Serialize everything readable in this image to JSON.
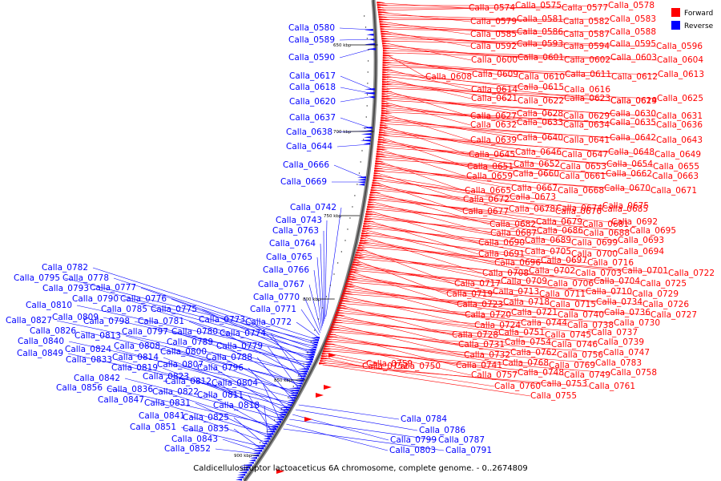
{
  "legend": {
    "forward": {
      "label": "Forward",
      "color": "#ff0000"
    },
    "reverse": {
      "label": "Reverse",
      "color": "#0000ff"
    }
  },
  "caption": "Caldicellulosiruptor lactoaceticus 6A chromosome, complete genome. - 0..2674809",
  "ticks": [
    "650 kbp",
    "700 kbp",
    "750 kbp",
    "800 kbp",
    "850 kbp",
    "900 kbp"
  ],
  "forward_genes": [
    "Calla_0574",
    "Calla_0575",
    "Calla_0577",
    "Calla_0578",
    "Calla_0579",
    "Calla_0581",
    "Calla_0582",
    "Calla_0583",
    "Calla_0585",
    "Calla_0586",
    "Calla_0587",
    "Calla_0588",
    "Calla_0592",
    "Calla_0593",
    "Calla_0594",
    "Calla_0595",
    "Calla_0596",
    "Calla_0600",
    "Calla_0601",
    "Calla_0602",
    "Calla_0603",
    "Calla_0604",
    "Calla_0608",
    "Calla_0609",
    "Calla_0610",
    "Calla_0611",
    "Calla_0612",
    "Calla_0613",
    "Calla_0614",
    "Calla_0615",
    "Calla_0616",
    "Calla_0619",
    "Calla_0621",
    "Calla_0622",
    "Calla_0623",
    "Calla_0624",
    "Calla_0625",
    "Calla_0627",
    "Calla_0628",
    "Calla_0629",
    "Calla_0630",
    "Calla_0631",
    "Calla_0632",
    "Calla_0633",
    "Calla_0634",
    "Calla_0635",
    "Calla_0636",
    "Calla_0639",
    "Calla_0640",
    "Calla_0641",
    "Calla_0642",
    "Calla_0643",
    "Calla_0645",
    "Calla_0646",
    "Calla_0647",
    "Calla_0648",
    "Calla_0649",
    "Calla_0651",
    "Calla_0652",
    "Calla_0653",
    "Calla_0654",
    "Calla_0655",
    "Calla_0659",
    "Calla_0660",
    "Calla_0661",
    "Calla_0662",
    "Calla_0663",
    "Calla_0665",
    "Calla_0667",
    "Calla_0668",
    "Calla_0670",
    "Calla_0671",
    "Calla_0672",
    "Calla_0673",
    "Calla_0674",
    "Calla_0675",
    "Calla_0677",
    "Calla_0678",
    "Calla_0676",
    "Calla_0685",
    "Calla_0682",
    "Calla_0679",
    "Calla_0681",
    "Calla_0692",
    "Calla_0687",
    "Calla_0686",
    "Calla_0688",
    "Calla_0695",
    "Calla_0690",
    "Calla_0689",
    "Calla_0699",
    "Calla_0693",
    "Calla_0691",
    "Calla_0705",
    "Calla_0700",
    "Calla_0694",
    "Calla_0696",
    "Calla_0697",
    "Calla_0716",
    "Calla_0708",
    "Calla_0702",
    "Calla_0703",
    "Calla_0701",
    "Calla_0722",
    "Calla_0717",
    "Calla_0709",
    "Calla_0706",
    "Calla_0704",
    "Calla_0725",
    "Calla_0719",
    "Calla_0713",
    "Calla_0711",
    "Calla_0710",
    "Calla_0729",
    "Calla_0723",
    "Calla_0718",
    "Calla_0715",
    "Calla_0734",
    "Calla_0726",
    "Calla_0720",
    "Calla_0721",
    "Calla_0740",
    "Calla_0736",
    "Calla_0727",
    "Calla_0724",
    "Calla_0744",
    "Calla_0738",
    "Calla_0730",
    "Calla_0728",
    "Calla_0751",
    "Calla_0745",
    "Calla_0737",
    "Calla_0731",
    "Calla_0754",
    "Calla_0746",
    "Calla_0739",
    "Calla_0732",
    "Calla_0762",
    "Calla_0756",
    "Calla_0747",
    "Calla_0741",
    "Calla_0768",
    "Calla_0769",
    "Calla_0783",
    "Calla_0757",
    "Calla_0748",
    "Calla_0749",
    "Calla_0758",
    "Calla_0750",
    "Calla_0759",
    "Calla_0752",
    "Calla_0760",
    "Calla_0753",
    "Calla_0761",
    "Calla_0755"
  ],
  "reverse_genes": [
    "Calla_0580",
    "Calla_0589",
    "Calla_0590",
    "Calla_0617",
    "Calla_0618",
    "Calla_0620",
    "Calla_0637",
    "Calla_0638",
    "Calla_0644",
    "Calla_0666",
    "Calla_0669",
    "Calla_0742",
    "Calla_0743",
    "Calla_0763",
    "Calla_0764",
    "Calla_0765",
    "Calla_0766",
    "Calla_0767",
    "Calla_0770",
    "Calla_0771",
    "Calla_0772",
    "Calla_0782",
    "Calla_0795",
    "Calla_0778",
    "Calla_0793",
    "Calla_0777",
    "Calla_0790",
    "Calla_0776",
    "Calla_0810",
    "Calla_0785",
    "Calla_0775",
    "Calla_0809",
    "Calla_0798",
    "Calla_0781",
    "Calla_0773",
    "Calla_0827",
    "Calla_0797",
    "Calla_0780",
    "Calla_0774",
    "Calla_0826",
    "Calla_0813",
    "Calla_0789",
    "Calla_0779",
    "Calla_0840",
    "Calla_0808",
    "Calla_0800",
    "Calla_0824",
    "Calla_0788",
    "Calla_0849",
    "Calla_0814",
    "Calla_0833",
    "Calla_0796",
    "Calla_0807",
    "Calla_0819",
    "Calla_0823",
    "Calla_0842",
    "Calla_0804",
    "Calla_0812",
    "Calla_0856",
    "Calla_0836",
    "Calla_0822",
    "Calla_0811",
    "Calla_0847",
    "Calla_0831",
    "Calla_0818",
    "Calla_0841",
    "Calla_0825",
    "Calla_0851",
    "Calla_0835",
    "Calla_0843",
    "Calla_0852",
    "Calla_0784",
    "Calla_0786",
    "Calla_0799",
    "Calla_0787",
    "Calla_0803",
    "Calla_0791"
  ]
}
